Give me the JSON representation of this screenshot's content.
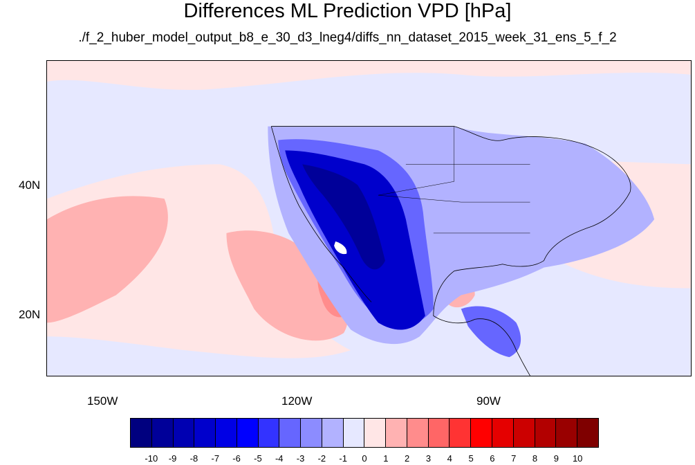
{
  "title": "Differences ML Prediction VPD [hPa]",
  "subtitle": "./f_2_huber_model_output_b8_e_30_d3_lneg4/diffs_nn_dataset_2015_week_31_ens_5_f_2",
  "map": {
    "lon_range": [
      -160,
      -60
    ],
    "lat_range": [
      11,
      60
    ],
    "lon_ticks": [
      "150W",
      "120W",
      "90W"
    ],
    "lat_ticks": [
      "40N",
      "20N"
    ]
  },
  "colorbar": {
    "labels": [
      "-10",
      "-9",
      "-8",
      "-7",
      "-6",
      "-5",
      "-4",
      "-3",
      "-2",
      "-1",
      "0",
      "1",
      "2",
      "3",
      "4",
      "5",
      "6",
      "7",
      "8",
      "9",
      "10"
    ],
    "colors": [
      "#00007f",
      "#000099",
      "#0000b2",
      "#0000cc",
      "#0000e5",
      "#0000ff",
      "#3333ff",
      "#6666ff",
      "#8c8cff",
      "#b2b2ff",
      "#e6e8ff",
      "#ffe6e6",
      "#ffb2b2",
      "#ff8c8c",
      "#ff6666",
      "#ff3333",
      "#ff0000",
      "#e50000",
      "#cc0000",
      "#b20000",
      "#990000",
      "#7f0000"
    ]
  }
}
